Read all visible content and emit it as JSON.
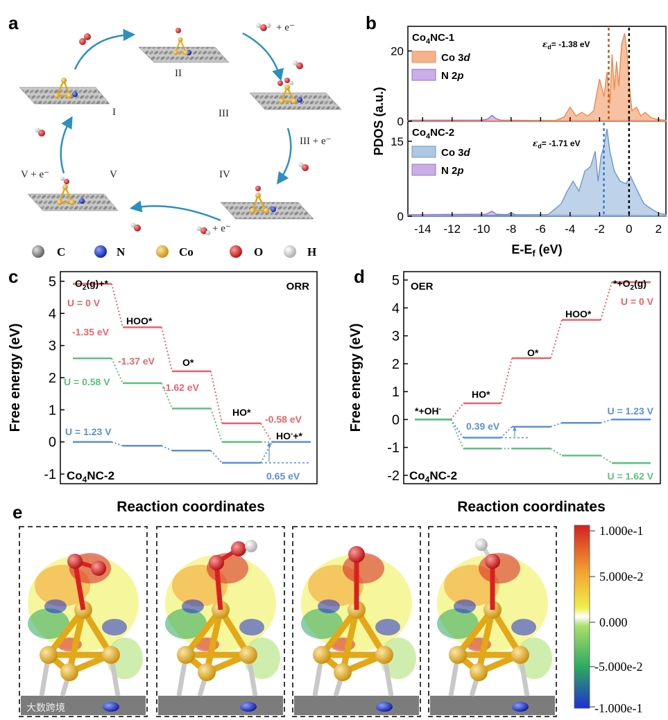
{
  "panel_labels": {
    "a": "a",
    "b": "b",
    "c": "c",
    "d": "d",
    "e": "e"
  },
  "panel_a": {
    "states": [
      {
        "id": "I",
        "label": "I"
      },
      {
        "id": "II",
        "label": "II"
      },
      {
        "id": "III",
        "label": "III"
      },
      {
        "id": "IV",
        "label": "IV"
      },
      {
        "id": "V",
        "label": "V"
      }
    ],
    "step_labels": {
      "water_e": "+ e⁻",
      "iii_e": "III + e⁻",
      "iv_e": "+ e⁻",
      "v_e": "V + e⁻"
    },
    "legend": [
      {
        "symbol": "C",
        "color": "#8a8a8a"
      },
      {
        "symbol": "N",
        "color": "#1f35c9"
      },
      {
        "symbol": "Co",
        "color": "#e2a818"
      },
      {
        "symbol": "O",
        "color": "#d92020"
      },
      {
        "symbol": "H",
        "color": "#e6e6e6"
      }
    ]
  },
  "chart_data": [
    {
      "id": "b",
      "type": "area",
      "ylabel": "PDOS (a.u.)",
      "xlabel_main": "E-E",
      "xlabel_sub": "f",
      "xlabel_unit": " (eV)",
      "xlim": [
        -15,
        2.5
      ],
      "xticks": [
        -14,
        -12,
        -10,
        -8,
        -6,
        -4,
        -2,
        0,
        2
      ],
      "subplots": [
        {
          "title_pre": "Co",
          "title_sub": "4",
          "title_post": "NC-1",
          "ylim": [
            0,
            27
          ],
          "yticks": [
            0,
            20
          ],
          "d_band_center": -1.38,
          "d_band_label": "= -1.38 eV",
          "eps_symbol": "ε",
          "eps_sub": "d",
          "legend": [
            {
              "name_pre": "Co 3",
              "name_it": "d",
              "fill": "#f6b28a",
              "stroke": "#ea8a52"
            },
            {
              "name_pre": "N 2",
              "name_it": "p",
              "fill": "#c9aee8",
              "stroke": "#9a6fd0"
            }
          ],
          "series": {
            "co3d": {
              "x": [
                -15,
                -5,
                -4.4,
                -4,
                -3.6,
                -3.2,
                -2.8,
                -2.4,
                -2.0,
                -1.7,
                -1.5,
                -1.3,
                -1.15,
                -1.0,
                -0.85,
                -0.7,
                -0.5,
                -0.3,
                -0.15,
                0,
                0.2,
                0.5,
                0.8,
                1.1,
                1.5,
                2.0,
                2.5
              ],
              "y": [
                0,
                0.2,
                1.2,
                4,
                1.5,
                2.5,
                1.5,
                3,
                12,
                7,
                14,
                5,
                19,
                9,
                17,
                10,
                22,
                25,
                20,
                11,
                3,
                4,
                1.5,
                2.5,
                1,
                0.5,
                0.3
              ]
            },
            "n2p": {
              "x": [
                -15,
                -10,
                -9.6,
                -9.3,
                -9.0,
                -8.7,
                -5,
                0,
                2.5
              ],
              "y": [
                0.3,
                0.3,
                0.6,
                1.7,
                0.7,
                0.3,
                0.2,
                0.3,
                0.2
              ]
            }
          }
        },
        {
          "title_pre": "Co",
          "title_sub": "4",
          "title_post": "NC-2",
          "ylim": [
            0,
            19
          ],
          "yticks": [
            0,
            15
          ],
          "d_band_center": -1.71,
          "d_band_label": "= -1.71 eV",
          "eps_symbol": "ε",
          "eps_sub": "d",
          "legend": [
            {
              "name_pre": "Co 3",
              "name_it": "d",
              "fill": "#aec7e3",
              "stroke": "#6a97c8"
            },
            {
              "name_pre": "N 2",
              "name_it": "p",
              "fill": "#c9aee8",
              "stroke": "#9a6fd0"
            }
          ],
          "series": {
            "co3d": {
              "x": [
                -15,
                -5.5,
                -5,
                -4.6,
                -4.2,
                -3.8,
                -3.4,
                -3.0,
                -2.6,
                -2.3,
                -2.1,
                -1.9,
                -1.7,
                -1.5,
                -1.3,
                -1.0,
                -0.6,
                -0.2,
                0.1,
                0.5,
                1.0,
                1.5,
                2.0,
                2.5
              ],
              "y": [
                0,
                0.3,
                1.5,
                2.5,
                5,
                7,
                5,
                9,
                10,
                13,
                7,
                12,
                14,
                17.5,
                13,
                9,
                7,
                6.5,
                8,
                5.5,
                2.5,
                1.5,
                0.6,
                0.3
              ]
            },
            "n2p": {
              "x": [
                -15,
                -9.7,
                -9.3,
                -9.0,
                -8.3,
                -8.0,
                -7.7,
                -5,
                2.5
              ],
              "y": [
                0.3,
                0.4,
                1.0,
                0.4,
                0.3,
                0.7,
                0.3,
                0.3,
                0.2
              ]
            }
          }
        }
      ]
    },
    {
      "id": "c",
      "type": "line",
      "title": "ORR",
      "ylabel": "Free energy (eV)",
      "xlabel": "Reaction coordinates",
      "ylim": [
        -1.3,
        5.3
      ],
      "yticks": [
        -1,
        0,
        1,
        2,
        3,
        4,
        5
      ],
      "catalyst_pre": "Co",
      "catalyst_sub": "4",
      "catalyst_post": "NC-2",
      "species": [
        "O2(g)+*",
        "HOO*",
        "O*",
        "HO*",
        "HO-+*"
      ],
      "species_labels": {
        "s1_pre": "O",
        "s1_sub": "2",
        "s1_post": "(g)+*",
        "s2": "HOO*",
        "s3": "O*",
        "s4": "HO*",
        "s5_pre": "HO",
        "s5_sup": "-",
        "s5_post": "+*"
      },
      "series": [
        {
          "name": "U = 0 V",
          "color": "#e8636a",
          "values": [
            4.92,
            3.57,
            2.2,
            0.58,
            0.0
          ]
        },
        {
          "name": "U = 0.58 V",
          "color": "#5cbf7e",
          "values": [
            2.6,
            1.83,
            1.04,
            0.0,
            0.0
          ]
        },
        {
          "name": "U = 1.23 V",
          "color": "#5b8fd6",
          "values": [
            0.0,
            -0.12,
            -0.27,
            -0.65,
            0.0
          ]
        }
      ],
      "step_annotations": [
        "-1.35 eV",
        "-1.37 eV",
        "-1.62 eV",
        "-0.58 eV"
      ],
      "limiting_annotation": "0.65 eV"
    },
    {
      "id": "d",
      "type": "line",
      "title": "OER",
      "ylabel": "Free energy (eV)",
      "xlabel": "Reaction coordinates",
      "ylim": [
        -2.3,
        5.3
      ],
      "yticks": [
        -2,
        -1,
        0,
        1,
        2,
        3,
        4,
        5
      ],
      "catalyst_pre": "Co",
      "catalyst_sub": "4",
      "catalyst_post": "NC-2",
      "species": [
        "*+OH-",
        "HO*",
        "O*",
        "HOO*",
        "*+O2(g)"
      ],
      "species_labels": {
        "s1_pre": "*+OH",
        "s1_sup": "-",
        "s2": "HO*",
        "s3": "O*",
        "s4": "HOO*",
        "s5_pre": "*+O",
        "s5_sub": "2",
        "s5_post": "(g)"
      },
      "series": [
        {
          "name": "U = 0 V",
          "color": "#e8636a",
          "values": [
            0.0,
            0.58,
            2.2,
            3.57,
            4.92
          ]
        },
        {
          "name": "U = 1.23 V",
          "color": "#5b8fd6",
          "values": [
            0.0,
            -0.65,
            -0.26,
            -0.12,
            0.0
          ]
        },
        {
          "name": "U = 1.62 V",
          "color": "#5cbf7e",
          "values": [
            0.0,
            -1.04,
            -1.04,
            -1.29,
            -1.56
          ]
        }
      ],
      "limiting_annotation": "0.39 eV"
    }
  ],
  "panel_e": {
    "colorbar": {
      "ticks": [
        "1.000e-1",
        "5.000e-2",
        "0.000",
        "-5.000e-2",
        "-1.000e-1"
      ],
      "colors": [
        "#d62020",
        "#f2a030",
        "#eef04a",
        "#ffffff",
        "#a8e06a",
        "#2aa860",
        "#1f2fd6"
      ]
    },
    "frames": [
      "O2*",
      "HOO*",
      "O*",
      "HO*"
    ]
  },
  "watermark": "大数跨境"
}
